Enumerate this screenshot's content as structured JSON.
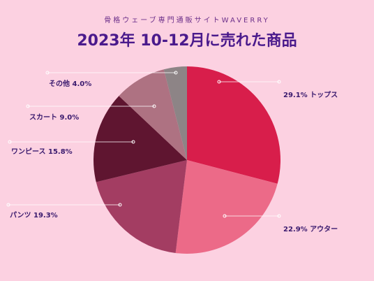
{
  "header": {
    "subtitle": "骨格ウェーブ専門通販サイトWAVERRY",
    "title": "2023年 10-12月に売れた商品"
  },
  "chart_data": {
    "type": "pie",
    "slices": [
      {
        "name": "トップス",
        "value": 29.1,
        "label": "29.1% トップス",
        "color": "#d81e4b"
      },
      {
        "name": "アウター",
        "value": 22.9,
        "label": "22.9% アウター",
        "color": "#ec6a88"
      },
      {
        "name": "パンツ",
        "value": 19.3,
        "label": "パンツ 19.3%",
        "color": "#a33d62"
      },
      {
        "name": "ワンピース",
        "value": 15.8,
        "label": "ワンピース 15.8%",
        "color": "#5f1530"
      },
      {
        "name": "スカート",
        "value": 9.0,
        "label": "スカート 9.0%",
        "color": "#ae7282"
      },
      {
        "name": "その他",
        "value": 4.0,
        "label": "その他 4.0%",
        "color": "#8d8486"
      }
    ]
  }
}
